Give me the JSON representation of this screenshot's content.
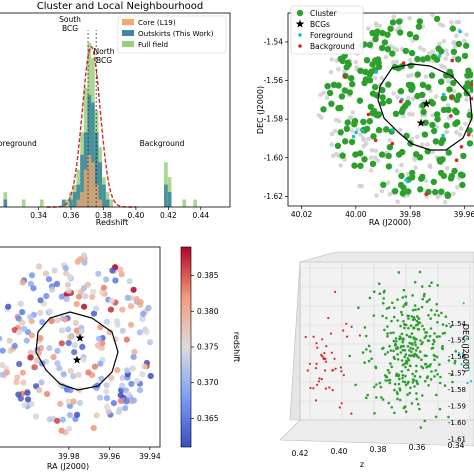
{
  "chart_data": [
    {
      "type": "bar",
      "panel": "histogram",
      "title": "Cluster and Local Neighbourhood",
      "xlabel": "Redshift",
      "ylabel": "",
      "xlim": [
        0.315,
        0.458
      ],
      "ylim": [
        0,
        26
      ],
      "xticks": [
        "0.34",
        "0.36",
        "0.38",
        "0.40",
        "0.42",
        "0.44"
      ],
      "xtick_values": [
        0.34,
        0.36,
        0.38,
        0.4,
        0.42,
        0.44
      ],
      "bin_width": 0.00225,
      "legend": {
        "placement": "top-right",
        "entries": [
          "Core (L19)",
          "Outskirts (This Work)",
          "Full field"
        ]
      },
      "series": [
        {
          "name": "Core (L19)",
          "color": "#f5a86a",
          "bins": [
            [
              0.3645,
              1
            ],
            [
              0.3668,
              2
            ],
            [
              0.369,
              5
            ],
            [
              0.3713,
              7
            ],
            [
              0.3735,
              6
            ],
            [
              0.3758,
              3
            ],
            [
              0.378,
              1
            ]
          ]
        },
        {
          "name": "Outskirts (This Work)",
          "color": "#3c88a0",
          "bins": [
            [
              0.3195,
              1
            ],
            [
              0.3555,
              1
            ],
            [
              0.36,
              1
            ],
            [
              0.3623,
              2
            ],
            [
              0.3645,
              3
            ],
            [
              0.3668,
              7
            ],
            [
              0.369,
              10
            ],
            [
              0.3713,
              15
            ],
            [
              0.3735,
              14
            ],
            [
              0.3758,
              10
            ],
            [
              0.378,
              6
            ],
            [
              0.3803,
              3
            ],
            [
              0.3825,
              1
            ],
            [
              0.4185,
              3
            ],
            [
              0.4208,
              2
            ]
          ]
        },
        {
          "name": "Full field",
          "color": "#9ccf7c",
          "bins": [
            [
              0.3195,
              2
            ],
            [
              0.3308,
              1
            ],
            [
              0.342,
              1
            ],
            [
              0.3578,
              1
            ],
            [
              0.36,
              2
            ],
            [
              0.3623,
              3
            ],
            [
              0.3645,
              5
            ],
            [
              0.3668,
              10
            ],
            [
              0.369,
              16
            ],
            [
              0.3713,
              22
            ],
            [
              0.3735,
              20
            ],
            [
              0.3758,
              13
            ],
            [
              0.378,
              8
            ],
            [
              0.3803,
              4
            ],
            [
              0.3825,
              2
            ],
            [
              0.3848,
              1
            ],
            [
              0.4185,
              6
            ],
            [
              0.4208,
              4
            ],
            [
              0.4298,
              1
            ],
            [
              0.4365,
              1
            ]
          ]
        }
      ],
      "gaussian_fit": {
        "mean": 0.3725,
        "sigma": 0.0055,
        "peak": 21.5,
        "color": "#d62728"
      },
      "annotations": [
        {
          "text": "South BCG",
          "x": 0.3665
        },
        {
          "text": "North BCG",
          "x": 0.3745
        },
        {
          "text": "Foreground",
          "x": 0.33
        },
        {
          "text": "Background",
          "x": 0.426
        }
      ]
    },
    {
      "type": "scatter",
      "panel": "sky-map",
      "xlabel": "RA (J2000)",
      "ylabel": "DEC (J2000)",
      "xlim": [
        40.025,
        39.955
      ],
      "ylim": [
        -1.625,
        -1.525
      ],
      "xticks": [
        "40.02",
        "40.00",
        "39.98",
        "39.96"
      ],
      "xtick_values": [
        40.02,
        40.0,
        39.98,
        39.96
      ],
      "yticks": [
        "-1.54",
        "-1.56",
        "-1.58",
        "-1.60",
        "-1.62"
      ],
      "ytick_values": [
        -1.54,
        -1.56,
        -1.58,
        -1.6,
        -1.62
      ],
      "legend": {
        "placement": "top-left",
        "entries": [
          "Cluster",
          "BCGs",
          "Foreground",
          "Background"
        ]
      },
      "colors": {
        "Cluster": "#2ca02c",
        "BCGs": "#000000",
        "Foreground": "#17becf",
        "Background": "#d62728",
        "Field": "#cccccc"
      },
      "bcgs": [
        [
          39.974,
          -1.572
        ],
        [
          39.976,
          -1.582
        ]
      ],
      "field_count": 260,
      "cluster_count": 280,
      "foreground_count": 14,
      "background_count": 22
    },
    {
      "type": "scatter",
      "panel": "redshift-map",
      "xlabel": "RA (J2000)",
      "ylabel": "",
      "xlim": [
        40.015,
        39.935
      ],
      "xticks": [
        "39.98",
        "39.96",
        "39.94"
      ],
      "xtick_values": [
        39.98,
        39.96,
        39.94
      ],
      "colorbar": {
        "label": "redshift",
        "min": 0.361,
        "max": 0.389,
        "ticks": [
          "0.365",
          "0.370",
          "0.375",
          "0.380",
          "0.385"
        ],
        "tick_values": [
          0.365,
          0.37,
          0.375,
          0.38,
          0.385
        ]
      },
      "point_count": 260
    },
    {
      "type": "scatter",
      "panel": "3d-view",
      "xlabel": "z",
      "ylabel": "DEC (J2000)",
      "xticks": [
        "0.42",
        "0.40",
        "0.38",
        "0.36",
        "0.34"
      ],
      "yticks": [
        "-1.54",
        "-1.55",
        "-1.56",
        "-1.57",
        "-1.58",
        "-1.59",
        "-1.60",
        "-1.61"
      ],
      "colors": {
        "Cluster": "#2ca02c",
        "Background": "#d62728",
        "Foreground": "#17becf"
      }
    }
  ]
}
